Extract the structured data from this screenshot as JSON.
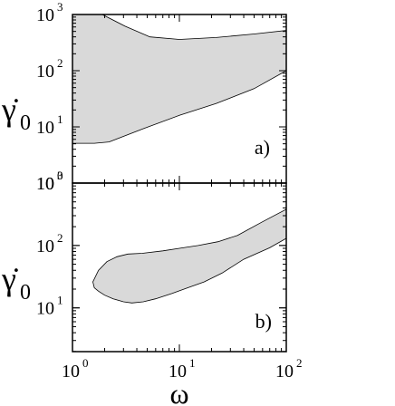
{
  "chart_data": [
    {
      "type": "area",
      "panel_label": "a)",
      "xlabel": "ω",
      "ylabel": "γ̇0",
      "xscale": "log",
      "yscale": "log",
      "xlim": [
        1,
        100
      ],
      "ylim": [
        1,
        1000
      ],
      "fill_color": "#d9d9d9",
      "x_tick_labels": [],
      "y_tick_labels": [
        {
          "base": "10",
          "exp": "0"
        },
        {
          "base": "10",
          "exp": "1"
        },
        {
          "base": "10",
          "exp": "2"
        },
        {
          "base": "10",
          "exp": "3"
        }
      ],
      "region": {
        "upper": [
          [
            1,
            1000
          ],
          [
            1.9,
            1000
          ],
          [
            3.1,
            620
          ],
          [
            5.3,
            400
          ],
          [
            10,
            360
          ],
          [
            22,
            390
          ],
          [
            50,
            450
          ],
          [
            100,
            520
          ]
        ],
        "lower": [
          [
            1,
            5.1
          ],
          [
            1.6,
            5.1
          ],
          [
            2.2,
            5.4
          ],
          [
            4.6,
            9.3
          ],
          [
            10,
            16
          ],
          [
            22,
            26
          ],
          [
            50,
            48
          ],
          [
            100,
            100
          ]
        ]
      }
    },
    {
      "type": "area",
      "panel_label": "b)",
      "xlabel": "ω",
      "ylabel": "γ̇0",
      "xscale": "log",
      "yscale": "log",
      "xlim": [
        1,
        100
      ],
      "ylim": [
        1.99,
        1000
      ],
      "fill_color": "#d9d9d9",
      "x_tick_labels": [
        {
          "base": "10",
          "exp": "0"
        },
        {
          "base": "10",
          "exp": "1"
        },
        {
          "base": "10",
          "exp": "2"
        }
      ],
      "y_tick_labels": [
        {
          "base": "10",
          "exp": "1"
        },
        {
          "base": "10",
          "exp": "2"
        },
        {
          "base": "10",
          "exp": "3"
        }
      ],
      "region": {
        "outline": [
          [
            1.55,
            26
          ],
          [
            1.75,
            40
          ],
          [
            2.1,
            55
          ],
          [
            2.6,
            66
          ],
          [
            3.3,
            73
          ],
          [
            4.5,
            75
          ],
          [
            7,
            82
          ],
          [
            10,
            90
          ],
          [
            15,
            100
          ],
          [
            23,
            115
          ],
          [
            35,
            145
          ],
          [
            60,
            240
          ],
          [
            100,
            380
          ],
          [
            100,
            130
          ],
          [
            70,
            92
          ],
          [
            40,
            60
          ],
          [
            25,
            36
          ],
          [
            17,
            26
          ],
          [
            12,
            21
          ],
          [
            8.5,
            17
          ],
          [
            6,
            14
          ],
          [
            4.6,
            12.5
          ],
          [
            3.6,
            12
          ],
          [
            3,
            12.5
          ],
          [
            2.4,
            14
          ],
          [
            2,
            16
          ],
          [
            1.75,
            18.5
          ],
          [
            1.6,
            21
          ]
        ]
      }
    }
  ],
  "figure": {
    "xlabel": "ω",
    "ylabel_base": "γ̇",
    "ylabel_sub": "0"
  }
}
